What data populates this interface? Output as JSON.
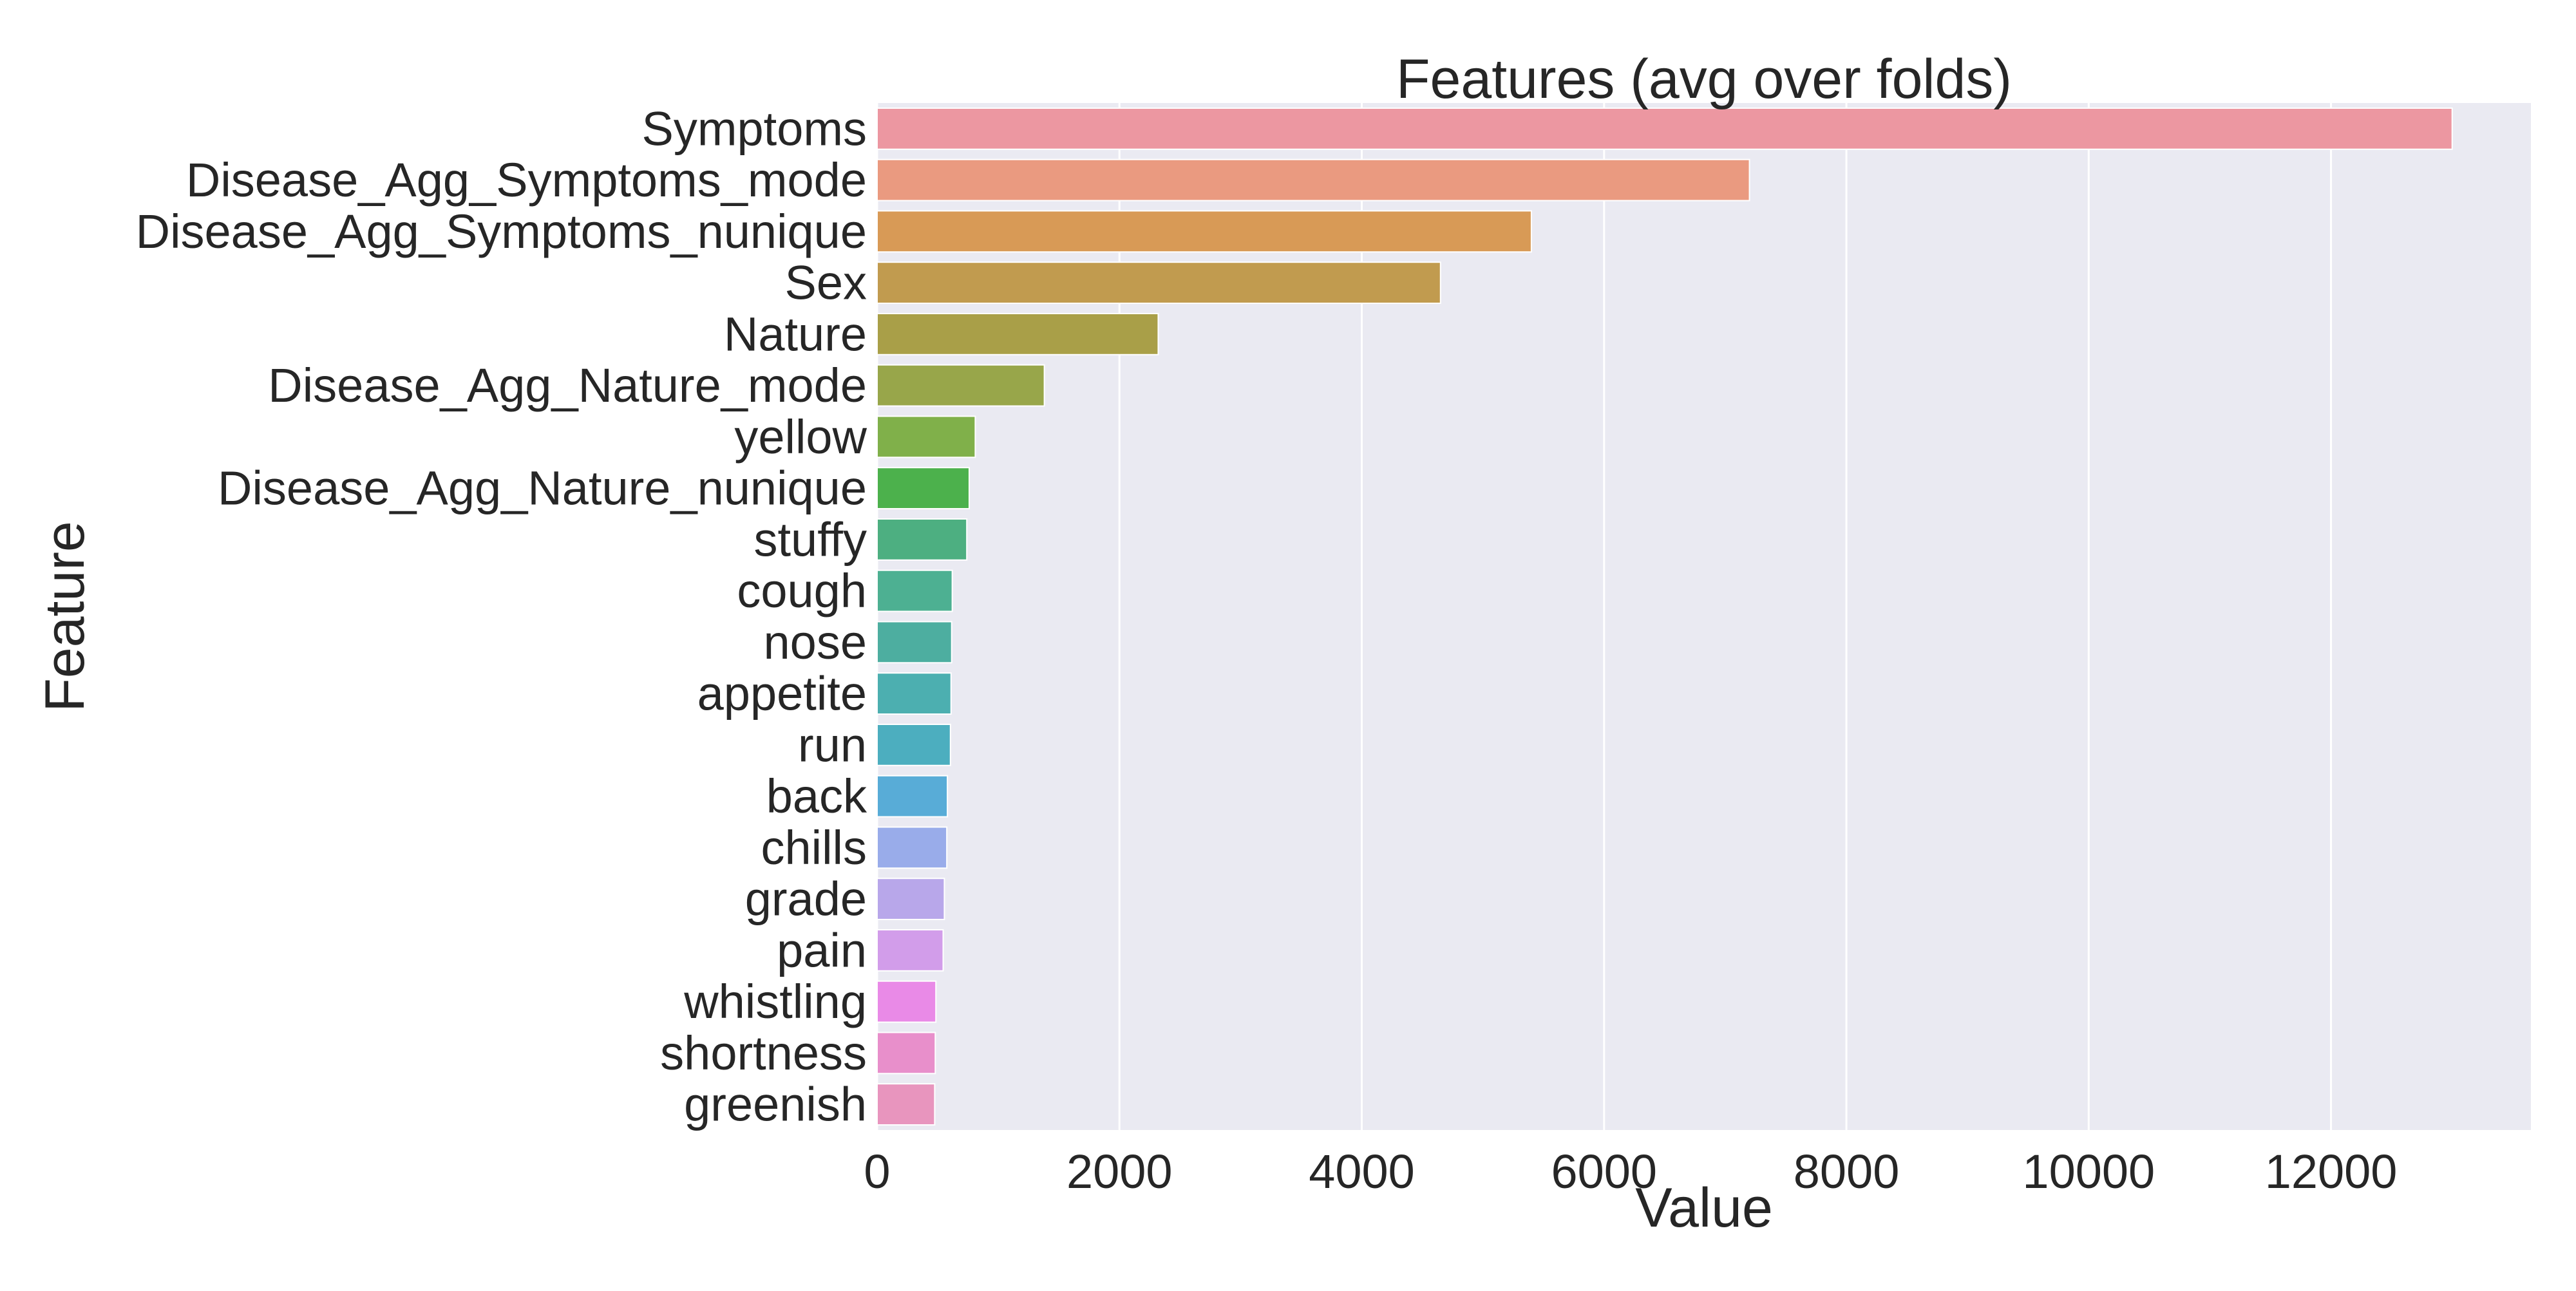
{
  "chart_data": {
    "type": "bar",
    "orientation": "horizontal",
    "title": "Features (avg over folds)",
    "xlabel": "Value",
    "ylabel": "Feature",
    "xlim": [
      0,
      13650
    ],
    "xticks": [
      0,
      2000,
      4000,
      6000,
      8000,
      10000,
      12000
    ],
    "grid": true,
    "categories": [
      "Symptoms",
      "Disease_Agg_Symptoms_mode",
      "Disease_Agg_Symptoms_nunique",
      "Sex",
      "Nature",
      "Disease_Agg_Nature_mode",
      "yellow",
      "Disease_Agg_Nature_nunique",
      "stuffy",
      "cough",
      "nose",
      "appetite",
      "run",
      "back",
      "chills",
      "grade",
      "pain",
      "whistling",
      "shortness",
      "greenish"
    ],
    "values": [
      13000,
      7200,
      5400,
      4650,
      2320,
      1380,
      810,
      760,
      740,
      620,
      615,
      610,
      605,
      580,
      575,
      555,
      545,
      485,
      480,
      475
    ],
    "colors": [
      "#ec97a1",
      "#ea9a80",
      "#d89a56",
      "#c19b4f",
      "#a99f48",
      "#98a64a",
      "#80b04a",
      "#4cb14c",
      "#4daf81",
      "#4db092",
      "#4daea0",
      "#4cafb0",
      "#4caebf",
      "#58acd7",
      "#99acea",
      "#b8a7ea",
      "#d29dea",
      "#e98ae7",
      "#e88fcb",
      "#e895be"
    ],
    "background_color": "#eaeaf2",
    "grid_color": "#ffffff"
  }
}
